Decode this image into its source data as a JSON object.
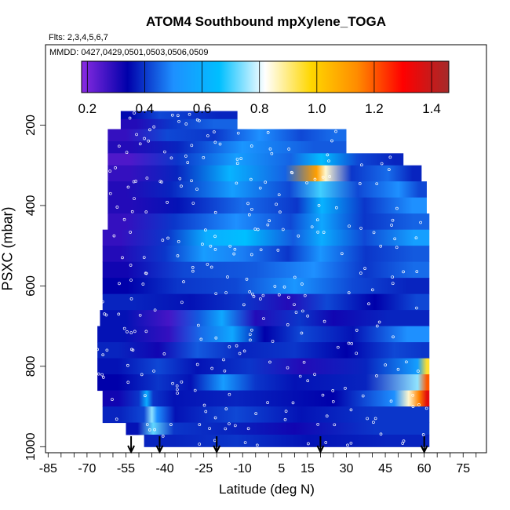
{
  "chart_data": {
    "type": "heatmap",
    "title": "ATOM4 Southbound mpXylene_TOGA",
    "flights_note": "Flts: 2,3,4,5,6,7",
    "dates_note": "MMDD: 0427,0429,0501,0503,0506,0509",
    "xlabel": "Latitude (deg N)",
    "ylabel": "PSXC (mbar)",
    "xlim": [
      -86,
      84
    ],
    "ylim": [
      1015,
      0
    ],
    "x_ticks": [
      -85,
      -70,
      -55,
      -40,
      -25,
      -10,
      5,
      15,
      30,
      45,
      60,
      75
    ],
    "y_ticks": [
      200,
      400,
      600,
      800,
      1000
    ],
    "colorbar": {
      "ticks": [
        0.2,
        0.4,
        0.6,
        0.8,
        1.0,
        1.2,
        1.4
      ],
      "tick_labels": [
        "0.2",
        "0.4",
        "0.6",
        "0.8",
        "1.0",
        "1.2",
        "1.4"
      ],
      "range": [
        0.18,
        1.46
      ],
      "colors": [
        "#8a2be2",
        "#0000aa",
        "#1e90ff",
        "#00bfff",
        "#ffffff",
        "#ffd700",
        "#ff8c00",
        "#ff0000",
        "#a52a2a"
      ]
    },
    "arrows_lat": [
      -53,
      -42,
      -20,
      20,
      60
    ],
    "bands": [
      {
        "p": [
          165,
          185
        ],
        "segments": [
          [
            -57,
            -48,
            0.35
          ],
          [
            -48,
            -36,
            0.42
          ],
          [
            -36,
            -25,
            0.4
          ],
          [
            -25,
            -12,
            0.38
          ]
        ]
      },
      {
        "p": [
          185,
          210
        ],
        "segments": [
          [
            -57,
            -45,
            0.3
          ],
          [
            -45,
            -30,
            0.4
          ],
          [
            -30,
            -12,
            0.45
          ]
        ]
      },
      {
        "p": [
          210,
          240
        ],
        "segments": [
          [
            -62,
            -48,
            0.28
          ],
          [
            -48,
            -30,
            0.42
          ],
          [
            -30,
            -12,
            0.4
          ],
          [
            -12,
            5,
            0.5
          ],
          [
            5,
            20,
            0.42
          ],
          [
            20,
            30,
            0.46
          ]
        ]
      },
      {
        "p": [
          240,
          270
        ],
        "segments": [
          [
            -62,
            -45,
            0.3
          ],
          [
            -45,
            -25,
            0.38
          ],
          [
            -25,
            5,
            0.52
          ],
          [
            5,
            30,
            0.44
          ]
        ]
      },
      {
        "p": [
          270,
          300
        ],
        "segments": [
          [
            -62,
            -45,
            0.25
          ],
          [
            -45,
            -25,
            0.4
          ],
          [
            -25,
            0,
            0.55
          ],
          [
            0,
            17,
            0.45
          ],
          [
            17,
            24,
            0.65
          ],
          [
            24,
            45,
            0.42
          ],
          [
            45,
            52,
            0.38
          ]
        ]
      },
      {
        "p": [
          300,
          340
        ],
        "segments": [
          [
            -62,
            -45,
            0.28
          ],
          [
            -45,
            -26,
            0.38
          ],
          [
            -26,
            -4,
            0.62
          ],
          [
            -4,
            17,
            0.45
          ],
          [
            17,
            20,
            1.1
          ],
          [
            20,
            24,
            0.85
          ],
          [
            24,
            40,
            0.4
          ],
          [
            40,
            52,
            0.46
          ],
          [
            52,
            59,
            0.38
          ]
        ]
      },
      {
        "p": [
          340,
          380
        ],
        "segments": [
          [
            -62,
            -48,
            0.3
          ],
          [
            -48,
            -28,
            0.38
          ],
          [
            -28,
            0,
            0.55
          ],
          [
            0,
            16,
            0.42
          ],
          [
            16,
            24,
            0.7
          ],
          [
            24,
            45,
            0.42
          ],
          [
            45,
            55,
            0.5
          ],
          [
            55,
            61,
            0.42
          ]
        ]
      },
      {
        "p": [
          380,
          420
        ],
        "segments": [
          [
            -62,
            -45,
            0.3
          ],
          [
            -45,
            -25,
            0.36
          ],
          [
            -25,
            5,
            0.46
          ],
          [
            5,
            17,
            0.4
          ],
          [
            17,
            24,
            0.62
          ],
          [
            24,
            50,
            0.4
          ],
          [
            50,
            61,
            0.5
          ]
        ]
      },
      {
        "p": [
          420,
          460
        ],
        "segments": [
          [
            -62,
            -48,
            0.28
          ],
          [
            -48,
            -25,
            0.4
          ],
          [
            -25,
            0,
            0.5
          ],
          [
            0,
            17,
            0.42
          ],
          [
            17,
            24,
            0.58
          ],
          [
            24,
            50,
            0.4
          ],
          [
            50,
            62,
            0.45
          ]
        ]
      },
      {
        "p": [
          460,
          500
        ],
        "segments": [
          [
            -64,
            -50,
            0.28
          ],
          [
            -50,
            -28,
            0.4
          ],
          [
            -28,
            -20,
            0.6
          ],
          [
            -20,
            2,
            0.66
          ],
          [
            2,
            17,
            0.44
          ],
          [
            17,
            24,
            0.6
          ],
          [
            24,
            50,
            0.42
          ],
          [
            50,
            62,
            0.55
          ]
        ]
      },
      {
        "p": [
          500,
          540
        ],
        "segments": [
          [
            -64,
            -50,
            0.3
          ],
          [
            -50,
            -30,
            0.4
          ],
          [
            -30,
            -20,
            0.54
          ],
          [
            -20,
            0,
            0.48
          ],
          [
            0,
            15,
            0.4
          ],
          [
            15,
            25,
            0.52
          ],
          [
            25,
            50,
            0.4
          ],
          [
            50,
            62,
            0.44
          ]
        ]
      },
      {
        "p": [
          540,
          580
        ],
        "segments": [
          [
            -64,
            -45,
            0.32
          ],
          [
            -45,
            -20,
            0.42
          ],
          [
            -20,
            10,
            0.44
          ],
          [
            10,
            25,
            0.5
          ],
          [
            25,
            50,
            0.4
          ],
          [
            50,
            62,
            0.46
          ]
        ]
      },
      {
        "p": [
          580,
          620
        ],
        "segments": [
          [
            -64,
            -45,
            0.34
          ],
          [
            -45,
            -25,
            0.4
          ],
          [
            -25,
            0,
            0.42
          ],
          [
            0,
            20,
            0.52
          ],
          [
            20,
            45,
            0.42
          ],
          [
            45,
            62,
            0.38
          ]
        ]
      },
      {
        "p": [
          620,
          660
        ],
        "segments": [
          [
            -64,
            -40,
            0.38
          ],
          [
            -40,
            -20,
            0.36
          ],
          [
            -20,
            0,
            0.4
          ],
          [
            0,
            15,
            0.3
          ],
          [
            15,
            30,
            0.42
          ],
          [
            30,
            52,
            0.34
          ],
          [
            52,
            62,
            0.42
          ]
        ]
      },
      {
        "p": [
          660,
          700
        ],
        "segments": [
          [
            -65,
            -45,
            0.36
          ],
          [
            -45,
            -32,
            0.26
          ],
          [
            -32,
            -22,
            0.44
          ],
          [
            -22,
            -14,
            0.58
          ],
          [
            -14,
            4,
            0.3
          ],
          [
            4,
            20,
            0.4
          ],
          [
            20,
            30,
            0.32
          ],
          [
            30,
            62,
            0.38
          ]
        ]
      },
      {
        "p": [
          700,
          740
        ],
        "segments": [
          [
            -66,
            -45,
            0.36
          ],
          [
            -45,
            -32,
            0.28
          ],
          [
            -32,
            -20,
            0.46
          ],
          [
            -20,
            -8,
            0.58
          ],
          [
            -8,
            5,
            0.34
          ],
          [
            5,
            20,
            0.42
          ],
          [
            20,
            45,
            0.36
          ],
          [
            45,
            62,
            0.5
          ]
        ]
      },
      {
        "p": [
          740,
          780
        ],
        "segments": [
          [
            -66,
            -50,
            0.38
          ],
          [
            -50,
            -35,
            0.32
          ],
          [
            -35,
            -20,
            0.44
          ],
          [
            -20,
            0,
            0.38
          ],
          [
            0,
            20,
            0.4
          ],
          [
            20,
            40,
            0.34
          ],
          [
            40,
            57,
            0.42
          ],
          [
            57,
            62,
            0.4
          ]
        ]
      },
      {
        "p": [
          780,
          820
        ],
        "segments": [
          [
            -66,
            -50,
            0.36
          ],
          [
            -50,
            -35,
            0.42
          ],
          [
            -35,
            -20,
            0.36
          ],
          [
            -20,
            5,
            0.4
          ],
          [
            5,
            20,
            0.3
          ],
          [
            20,
            55,
            0.38
          ],
          [
            55,
            60,
            0.55
          ],
          [
            60,
            62,
            0.95
          ]
        ]
      },
      {
        "p": [
          820,
          860
        ],
        "segments": [
          [
            -66,
            -50,
            0.34
          ],
          [
            -50,
            -35,
            0.4
          ],
          [
            -35,
            -25,
            0.36
          ],
          [
            -25,
            -10,
            0.54
          ],
          [
            -10,
            0,
            0.4
          ],
          [
            0,
            20,
            0.36
          ],
          [
            20,
            55,
            0.38
          ],
          [
            55,
            60,
            0.75
          ],
          [
            60,
            62,
            1.2
          ]
        ]
      },
      {
        "p": [
          860,
          900
        ],
        "segments": [
          [
            -64,
            -52,
            0.32
          ],
          [
            -52,
            -48,
            0.4
          ],
          [
            -48,
            -46,
            0.6
          ],
          [
            -46,
            -43,
            0.4
          ],
          [
            -43,
            -30,
            0.36
          ],
          [
            -30,
            5,
            0.38
          ],
          [
            5,
            45,
            0.34
          ],
          [
            45,
            52,
            0.5
          ],
          [
            52,
            56,
            0.85
          ],
          [
            56,
            60,
            1.15
          ],
          [
            60,
            62,
            1.35
          ]
        ]
      },
      {
        "p": [
          900,
          940
        ],
        "segments": [
          [
            -64,
            -50,
            0.38
          ],
          [
            -50,
            -46,
            0.42
          ],
          [
            -46,
            -44,
            0.75
          ],
          [
            -44,
            -42,
            0.5
          ],
          [
            -42,
            -30,
            0.36
          ],
          [
            -30,
            5,
            0.42
          ],
          [
            5,
            20,
            0.36
          ],
          [
            20,
            62,
            0.4
          ]
        ]
      },
      {
        "p": [
          940,
          970
        ],
        "segments": [
          [
            -55,
            -46,
            0.36
          ],
          [
            -46,
            -43,
            0.72
          ],
          [
            -43,
            -30,
            0.4
          ],
          [
            -30,
            0,
            0.38
          ],
          [
            0,
            20,
            0.32
          ],
          [
            20,
            62,
            0.4
          ]
        ]
      },
      {
        "p": [
          970,
          1000
        ],
        "segments": [
          [
            -48,
            -25,
            0.38
          ],
          [
            -25,
            0,
            0.4
          ],
          [
            0,
            30,
            0.36
          ],
          [
            30,
            62,
            0.38
          ]
        ]
      }
    ]
  }
}
